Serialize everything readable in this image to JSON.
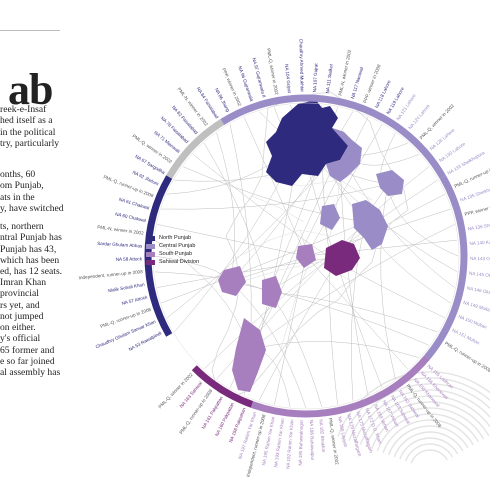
{
  "heading": "ab",
  "article": {
    "paragraphs": [
      [
        "reek-e-Insaf",
        "hed itself as a",
        "in the political",
        "try, particularly"
      ],
      [
        "onths, 60",
        "om Punjab,",
        "ats in the",
        "y, have switched"
      ],
      [
        "ts, northern",
        "ntral Punjab has",
        "Punjab has 43,",
        "which has been",
        "ed, has 12 seats."
      ],
      [
        "Imran Khan",
        "provincial",
        "rs yet, and",
        "not jumped",
        "on either.",
        "y's official",
        "65 former and",
        "e so far joined",
        "al assembly has"
      ]
    ]
  },
  "legend": [
    {
      "label": "North Punjab",
      "color": "#2e2a7e"
    },
    {
      "label": "Central Punjab",
      "color": "#9a8cc6"
    },
    {
      "label": "South Punjab",
      "color": "#a77fbf"
    },
    {
      "label": "Sahiwal Division",
      "color": "#7a2a7c"
    }
  ],
  "colors": {
    "north": "#2e2a7e",
    "central": "#9a8cc6",
    "south": "#a77fbf",
    "sahiwal": "#7a2a7c",
    "lines": "#b5b5b5",
    "map_outline": "#d4d4d4"
  },
  "constituency_labels": {
    "north": [
      "NA 53 Rawalpindi",
      "Chaudhry Ghulam Sarwar Khan",
      "PML-Q, runner-up in 2008",
      "NA 57 Attock",
      "Malik Sohail Khan",
      "Independent, runner-up in 2008",
      "NA 58 Attock",
      "Sardar Ghulam Abbas",
      "PML-N, winner in 2002",
      "NA 60 Chakwal",
      "NA 61 Chakwal",
      "PML-Q, runner-up in 2008",
      "NA 62 Jhelum",
      "NA 67 Sargodha",
      "PML-Q, winner in 2002",
      "NA 71 Mianwali",
      "NA 78 Faisalabad",
      "NA 82 Faisalabad",
      "PML-N, winner in 2002",
      "NA 84 Faisalabad",
      "NA 86 Jhang",
      "PPP, winner in 2002",
      "NA 96 Gujranwala",
      "NA 97 Gujranwala II",
      "PML-Q, winner in 2002",
      "NA 104 Gujrat",
      "Chaudhry Ahmed Mukhtar",
      "NA 107 Gujrat",
      "NA 111 Sialkot",
      "PML-N, winner in 2002",
      "NA 117 Narowal",
      "PPP, winner in 2008",
      "NA 118 Lahore",
      "NA 119 Lahore"
    ],
    "central": [
      "NA 121 Lahore",
      "NA 124 Lahore",
      "PML-Q, winner in 2002",
      "NA 126 Lahore",
      "NA 130 Lahore",
      "NA 133 Sheikhupura",
      "PML-Q, runner-up in 2008",
      "NA 135 Sheikhupura",
      "PPP, winner in 2008",
      "NA 136 Sheikhupura",
      "NA 140 Kasur",
      "NA 143 Okara",
      "NA 145 Okara",
      "NA 146 Okara",
      "NA 149 Multan",
      "NA 150 Multan",
      "NA 151 Multan",
      "PML-Q, runner-up in 2008"
    ],
    "south": [
      "NA 155 Lodhran",
      "NA 156 Khanewal",
      "NA 158 Khanewal",
      "PML-Q, runner-up in 2008",
      "NA 162 Sahiwal",
      "NA 163 Sahiwal",
      "NA 167 Vehari",
      "NA 169 Vehari",
      "NA 172 D.G. Khan",
      "NA 175 Muzaffargarh",
      "NA 179 Muzaffargarh",
      "NA 180 Layyah",
      "PML-Q, winner in 2002",
      "NA 182 Bhakkar",
      "NA 186 Bahawalpur",
      "NA 190 Bahawalnagar",
      "NA 192 Rahim Yar Khan",
      "NA 193 Rahim Yar Khan",
      "NA 195 Rahim Yar Khan",
      "Independent, runner-up in 2008",
      "NA 197 Rahim Yar Khan"
    ],
    "sahiwal": [
      "NA 158 Pakpattan",
      "NA 160 Pakpattan",
      "NA 161 Pakpattan",
      "PML-Q, runner-up in 2008",
      "NA 163 Sahiwal",
      "PML-Q, winner in 2002"
    ]
  }
}
